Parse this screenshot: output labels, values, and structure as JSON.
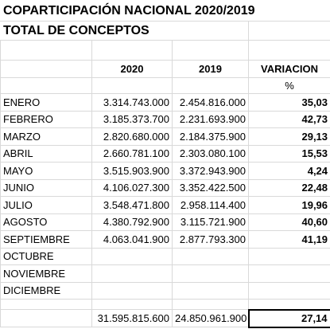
{
  "title": "COPARTICIPACIÓN  NACIONAL 2020/2019",
  "subtitle": "TOTAL  DE CONCEPTOS",
  "headers": [
    "2020",
    "2019",
    "VARIACION"
  ],
  "unit": "%",
  "rows": [
    [
      "ENERO",
      "3.314.743.000",
      "2.454.816.000",
      "35,03"
    ],
    [
      "FEBRERO",
      "3.185.373.700",
      "2.231.693.900",
      "42,73"
    ],
    [
      "MARZO",
      "2.820.680.000",
      "2.184.375.900",
      "29,13"
    ],
    [
      "ABRIL",
      "2.660.781.100",
      "2.303.080.100",
      "15,53"
    ],
    [
      "MAYO",
      "3.515.903.900",
      "3.372.943.900",
      "4,24"
    ],
    [
      "JUNIO",
      "4.106.027.300",
      "3.352.422.500",
      "22,48"
    ],
    [
      "JULIO",
      "3.548.471.800",
      "2.958.114.400",
      "19,96"
    ],
    [
      "AGOSTO",
      "4.380.792.900",
      "3.115.721.900",
      "40,60"
    ],
    [
      "SEPTIEMBRE",
      "4.063.041.900",
      "2.877.793.300",
      "41,19"
    ],
    [
      "OCTUBRE"
    ],
    [
      "NOVIEMBRE"
    ],
    [
      "DICIEMBRE"
    ]
  ],
  "totals": [
    "31.595.815.600",
    "24.850.961.900",
    "27,14"
  ]
}
